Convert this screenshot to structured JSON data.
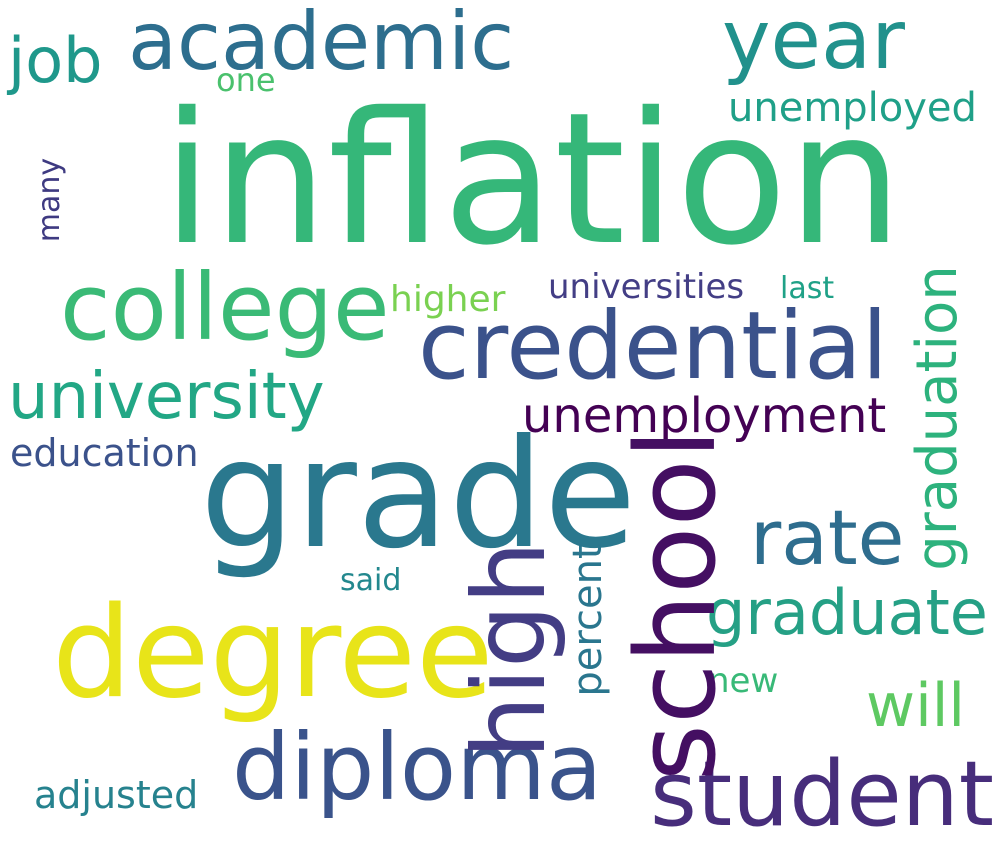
{
  "words": {
    "inflation": {
      "text": "inflation",
      "color": "#35b779"
    },
    "grade": {
      "text": "grade",
      "color": "#2a788e"
    },
    "degree": {
      "text": "degree",
      "color": "#e8e419"
    },
    "credential": {
      "text": "credential",
      "color": "#3b528b"
    },
    "college": {
      "text": "college",
      "color": "#3aba76"
    },
    "academic": {
      "text": "academic",
      "color": "#2d6e8e"
    },
    "year": {
      "text": "year",
      "color": "#21918c"
    },
    "school": {
      "text": "school",
      "color": "#440f62"
    },
    "high": {
      "text": "high",
      "color": "#433d84"
    },
    "diploma": {
      "text": "diploma",
      "color": "#3a538b"
    },
    "student": {
      "text": "student",
      "color": "#472d7b"
    },
    "rate": {
      "text": "rate",
      "color": "#2e6d8e"
    },
    "graduation": {
      "text": "graduation",
      "color": "#2db27d"
    },
    "university": {
      "text": "university",
      "color": "#22a785"
    },
    "graduate": {
      "text": "graduate",
      "color": "#25a085"
    },
    "unemployment": {
      "text": "unemployment",
      "color": "#440154"
    },
    "job": {
      "text": "job",
      "color": "#1f988b"
    },
    "unemployed": {
      "text": "unemployed",
      "color": "#1fa088"
    },
    "education": {
      "text": "education",
      "color": "#3b528b"
    },
    "universities": {
      "text": "universities",
      "color": "#433e85"
    },
    "higher": {
      "text": "higher",
      "color": "#7ad151"
    },
    "last": {
      "text": "last",
      "color": "#1fa187"
    },
    "one": {
      "text": "one",
      "color": "#4ac16d"
    },
    "many": {
      "text": "many",
      "color": "#3e3a81"
    },
    "percent": {
      "text": "percent",
      "color": "#2a768e"
    },
    "said": {
      "text": "said",
      "color": "#23888e"
    },
    "new": {
      "text": "new",
      "color": "#38b977"
    },
    "will": {
      "text": "will",
      "color": "#5ec962"
    },
    "adjusted": {
      "text": "adjusted",
      "color": "#26828e"
    }
  }
}
